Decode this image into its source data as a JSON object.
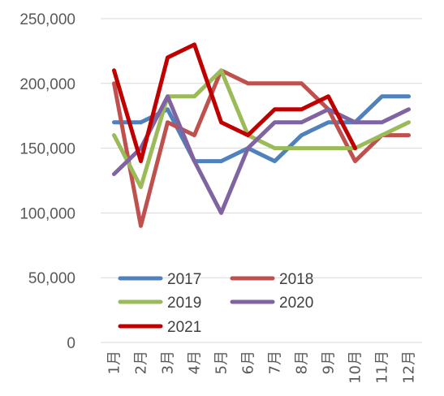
{
  "chart_data": {
    "type": "line",
    "title": "",
    "xlabel": "",
    "ylabel": "",
    "categories": [
      "1月",
      "2月",
      "3月",
      "4月",
      "5月",
      "6月",
      "7月",
      "8月",
      "9月",
      "10月",
      "11月",
      "12月"
    ],
    "ylim": [
      0,
      250000
    ],
    "yticks": [
      0,
      50000,
      100000,
      150000,
      200000,
      250000
    ],
    "ytick_labels": [
      "0",
      "50,000",
      "100,000",
      "150,000",
      "200,000",
      "250,000"
    ],
    "grid": true,
    "legend_position": "bottom-left-inside",
    "series": [
      {
        "name": "2017",
        "color": "#4f81bd",
        "values": [
          170000,
          170000,
          180000,
          140000,
          140000,
          150000,
          140000,
          160000,
          170000,
          170000,
          190000,
          190000
        ]
      },
      {
        "name": "2018",
        "color": "#c0504d",
        "values": [
          200000,
          90000,
          170000,
          160000,
          210000,
          200000,
          200000,
          200000,
          180000,
          140000,
          160000,
          160000
        ]
      },
      {
        "name": "2019",
        "color": "#9bbb59",
        "values": [
          160000,
          120000,
          190000,
          190000,
          210000,
          160000,
          150000,
          150000,
          150000,
          150000,
          160000,
          170000
        ]
      },
      {
        "name": "2020",
        "color": "#8064a2",
        "values": [
          130000,
          150000,
          190000,
          140000,
          100000,
          150000,
          170000,
          170000,
          180000,
          170000,
          170000,
          180000
        ]
      },
      {
        "name": "2021",
        "color": "#c00000",
        "values": [
          210000,
          140000,
          220000,
          230000,
          170000,
          160000,
          180000,
          180000,
          190000,
          150000,
          null,
          null
        ]
      }
    ]
  }
}
